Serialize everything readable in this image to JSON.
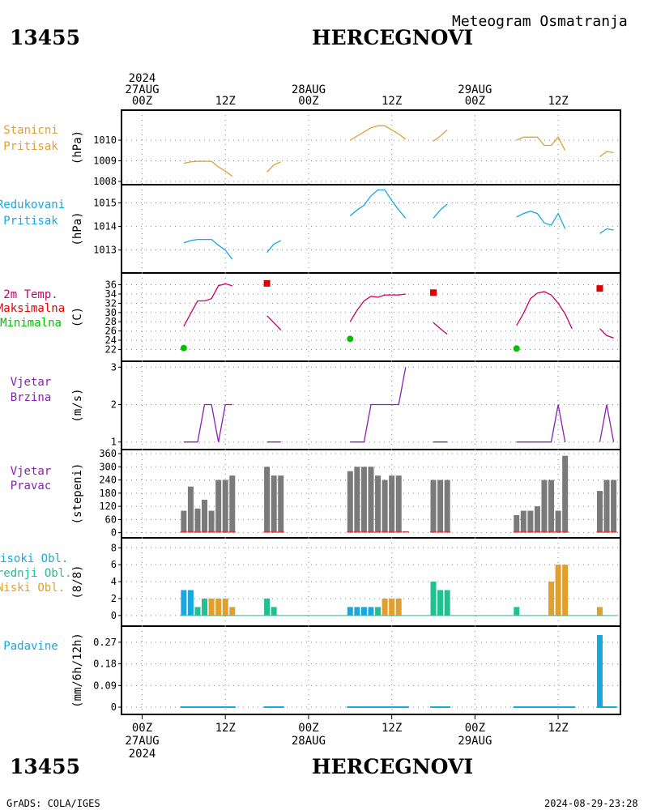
{
  "header": {
    "station_id": "13455",
    "station_name": "HERCEGNOVI",
    "subtitle": "Meteogram Osmatranja"
  },
  "footer": {
    "credit": "GrADS: COLA/IGES",
    "timestamp": "2024-08-29-23:28"
  },
  "time_axis": {
    "top_labels": [
      {
        "hour": 0,
        "lines": [
          "2024",
          "27AUG",
          "00Z"
        ]
      },
      {
        "hour": 12,
        "lines": [
          "12Z"
        ]
      },
      {
        "hour": 24,
        "lines": [
          "28AUG",
          "00Z"
        ]
      },
      {
        "hour": 36,
        "lines": [
          "12Z"
        ]
      },
      {
        "hour": 48,
        "lines": [
          "29AUG",
          "00Z"
        ]
      },
      {
        "hour": 60,
        "lines": [
          "12Z"
        ]
      }
    ],
    "bottom_labels": [
      {
        "hour": 0,
        "lines": [
          "00Z",
          "27AUG",
          "2024"
        ]
      },
      {
        "hour": 12,
        "lines": [
          "12Z"
        ]
      },
      {
        "hour": 24,
        "lines": [
          "00Z",
          "28AUG"
        ]
      },
      {
        "hour": 36,
        "lines": [
          "12Z"
        ]
      },
      {
        "hour": 48,
        "lines": [
          "00Z",
          "29AUG"
        ]
      },
      {
        "hour": 60,
        "lines": [
          "12Z"
        ]
      }
    ]
  },
  "chart_data": [
    {
      "type": "line",
      "labels": [
        {
          "text": "Stanicni",
          "color": "#e0a030"
        },
        {
          "text": "Pritisak",
          "color": "#e0a030"
        }
      ],
      "ylabel": "(hPa)",
      "ylim": [
        1008,
        1011.3
      ],
      "yticks": [
        1008,
        1009,
        1010
      ],
      "grid": true,
      "series": [
        {
          "color": "#e0a030",
          "segments": [
            [
              [
                6,
                1008.88
              ],
              [
                7,
                1008.95
              ],
              [
                8,
                1008.98
              ],
              [
                9,
                1008.98
              ],
              [
                10,
                1008.98
              ],
              [
                11,
                1008.7
              ],
              [
                12,
                1008.5
              ],
              [
                13,
                1008.25
              ]
            ],
            [
              [
                18,
                1008.45
              ],
              [
                19,
                1008.8
              ],
              [
                20,
                1008.95
              ]
            ],
            [
              [
                30,
                1010
              ],
              [
                31,
                1010.2
              ],
              [
                32,
                1010.4
              ],
              [
                33,
                1010.6
              ],
              [
                34,
                1010.7
              ],
              [
                35,
                1010.7
              ],
              [
                36,
                1010.5
              ],
              [
                37,
                1010.3
              ],
              [
                38,
                1010.05
              ]
            ],
            [
              [
                42,
                1009.95
              ],
              [
                43,
                1010.2
              ],
              [
                44,
                1010.5
              ]
            ],
            [
              [
                54,
                1010
              ],
              [
                55,
                1010.15
              ],
              [
                56,
                1010.15
              ],
              [
                57,
                1010.15
              ],
              [
                58,
                1009.75
              ],
              [
                59,
                1009.75
              ],
              [
                60,
                1010.15
              ],
              [
                61,
                1009.5
              ]
            ],
            [
              [
                66,
                1009.2
              ],
              [
                67,
                1009.45
              ],
              [
                68,
                1009.4
              ]
            ]
          ]
        }
      ]
    },
    {
      "type": "line",
      "labels": [
        {
          "text": "Redukovani",
          "color": "#1aa7e0"
        },
        {
          "text": "Pritisak",
          "color": "#1aa7e0"
        }
      ],
      "ylabel": "(hPa)",
      "ylim": [
        1012.3,
        1015.5
      ],
      "yticks": [
        1013,
        1014,
        1015
      ],
      "grid": true,
      "series": [
        {
          "color": "#1aa7e0",
          "segments": [
            [
              [
                6,
                1013.3
              ],
              [
                7,
                1013.4
              ],
              [
                8,
                1013.45
              ],
              [
                9,
                1013.45
              ],
              [
                10,
                1013.45
              ],
              [
                11,
                1013.2
              ],
              [
                12,
                1013
              ],
              [
                13,
                1012.6
              ]
            ],
            [
              [
                18,
                1012.9
              ],
              [
                19,
                1013.25
              ],
              [
                20,
                1013.4
              ]
            ],
            [
              [
                30,
                1014.45
              ],
              [
                31,
                1014.7
              ],
              [
                32,
                1014.9
              ],
              [
                33,
                1015.3
              ],
              [
                34,
                1015.55
              ],
              [
                35,
                1015.55
              ],
              [
                36,
                1015.1
              ],
              [
                37,
                1014.7
              ],
              [
                38,
                1014.35
              ]
            ],
            [
              [
                42,
                1014.35
              ],
              [
                43,
                1014.7
              ],
              [
                44,
                1014.95
              ]
            ],
            [
              [
                54,
                1014.4
              ],
              [
                55,
                1014.55
              ],
              [
                56,
                1014.65
              ],
              [
                57,
                1014.55
              ],
              [
                58,
                1014.15
              ],
              [
                59,
                1014.05
              ],
              [
                60,
                1014.55
              ],
              [
                61,
                1013.9
              ]
            ],
            [
              [
                66,
                1013.7
              ],
              [
                67,
                1013.9
              ],
              [
                68,
                1013.85
              ]
            ]
          ]
        }
      ]
    },
    {
      "type": "line",
      "labels": [
        {
          "text": "2m Temp.",
          "color": "#c8006a"
        },
        {
          "text": "Maksimalna",
          "color": "#e00000"
        },
        {
          "text": "Minimalna",
          "color": "#00c000"
        }
      ],
      "ylabel": "(C)",
      "ylim": [
        20.5,
        37.5
      ],
      "yticks": [
        22,
        24,
        26,
        28,
        30,
        32,
        34,
        36
      ],
      "grid": true,
      "series": [
        {
          "color": "#c8006a",
          "segments": [
            [
              [
                6,
                27
              ],
              [
                7,
                29.8
              ],
              [
                8,
                32.5
              ],
              [
                9,
                32.5
              ],
              [
                10,
                33
              ],
              [
                11,
                35.8
              ],
              [
                12,
                36.2
              ],
              [
                13,
                35.8
              ]
            ],
            [
              [
                18,
                29.3
              ],
              [
                19,
                27.8
              ],
              [
                20,
                26.2
              ]
            ],
            [
              [
                30,
                28
              ],
              [
                31,
                30.5
              ],
              [
                32,
                32.5
              ],
              [
                33,
                33.5
              ],
              [
                34,
                33.3
              ],
              [
                35,
                33.8
              ],
              [
                36,
                33.8
              ],
              [
                37,
                33.8
              ],
              [
                38,
                34
              ]
            ],
            [
              [
                42,
                27.8
              ],
              [
                43,
                26.5
              ],
              [
                44,
                25.3
              ]
            ],
            [
              [
                54,
                27.2
              ],
              [
                55,
                29.8
              ],
              [
                56,
                33
              ],
              [
                57,
                34.2
              ],
              [
                58,
                34.5
              ],
              [
                59,
                33.8
              ],
              [
                60,
                32
              ],
              [
                61,
                29.7
              ],
              [
                62,
                26.5
              ]
            ],
            [
              [
                66,
                26.5
              ],
              [
                67,
                25
              ],
              [
                68,
                24.5
              ]
            ]
          ]
        }
      ],
      "max_points": {
        "color": "#e00000",
        "points": [
          [
            18,
            36.3
          ],
          [
            42,
            34.3
          ],
          [
            66,
            35.2
          ]
        ]
      },
      "min_points": {
        "color": "#00c000",
        "points": [
          [
            6,
            22.3
          ],
          [
            30,
            24.3
          ],
          [
            54,
            22.2
          ]
        ]
      }
    },
    {
      "type": "line",
      "labels": [
        {
          "text": "Vjetar",
          "color": "#8a20b0"
        },
        {
          "text": "Brzina",
          "color": "#8a20b0"
        }
      ],
      "ylabel": "(m/s)",
      "ylim": [
        0.95,
        3.05
      ],
      "yticks": [
        1,
        2,
        3
      ],
      "grid": true,
      "series": [
        {
          "color": "#8a20b0",
          "segments": [
            [
              [
                6,
                1
              ],
              [
                7,
                1
              ],
              [
                8,
                1
              ],
              [
                9,
                2
              ],
              [
                10,
                2
              ],
              [
                11,
                1
              ],
              [
                12,
                2
              ],
              [
                13,
                2
              ]
            ],
            [
              [
                18,
                1
              ],
              [
                19,
                1
              ],
              [
                20,
                1
              ]
            ],
            [
              [
                30,
                1
              ],
              [
                31,
                1
              ],
              [
                32,
                1
              ],
              [
                33,
                2
              ],
              [
                34,
                2
              ],
              [
                35,
                2
              ],
              [
                36,
                2
              ],
              [
                37,
                2
              ],
              [
                38,
                3
              ]
            ],
            [
              [
                42,
                1
              ],
              [
                43,
                1
              ],
              [
                44,
                1
              ]
            ],
            [
              [
                54,
                1
              ],
              [
                55,
                1
              ],
              [
                56,
                1
              ],
              [
                57,
                1
              ],
              [
                58,
                1
              ],
              [
                59,
                1
              ],
              [
                60,
                2
              ],
              [
                61,
                1
              ]
            ],
            [
              [
                66,
                1
              ],
              [
                67,
                2
              ],
              [
                68,
                1
              ]
            ]
          ]
        }
      ]
    },
    {
      "type": "bar",
      "labels": [
        {
          "text": "Vjetar",
          "color": "#8a20b0"
        },
        {
          "text": "Pravac",
          "color": "#8a20b0"
        }
      ],
      "ylabel": "(stepeni)",
      "ylim": [
        -5,
        360
      ],
      "yticks": [
        0,
        60,
        120,
        180,
        240,
        300,
        360
      ],
      "grid": true,
      "bar_color": "#7a7a7a",
      "x": [
        6,
        7,
        8,
        9,
        10,
        11,
        12,
        13,
        18,
        19,
        20,
        30,
        31,
        32,
        33,
        34,
        35,
        36,
        37,
        38,
        42,
        43,
        44,
        54,
        55,
        56,
        57,
        58,
        59,
        60,
        61,
        66,
        67,
        68
      ],
      "values": [
        100,
        210,
        110,
        150,
        100,
        240,
        240,
        260,
        300,
        260,
        260,
        280,
        300,
        300,
        300,
        260,
        240,
        260,
        260,
        0,
        240,
        240,
        240,
        80,
        100,
        100,
        120,
        240,
        240,
        100,
        350,
        190,
        240,
        240
      ],
      "baseline_color": "#d04040"
    },
    {
      "type": "bar",
      "labels": [
        {
          "text": "Visoki Obl.",
          "color": "#1aa7e0"
        },
        {
          "text": "Srednji Obl.",
          "color": "#20c090"
        },
        {
          "text": "Niski Obl.",
          "color": "#e0a030"
        }
      ],
      "ylabel": "(8/8)",
      "ylim": [
        -0.3,
        8.6
      ],
      "yticks": [
        0,
        2,
        4,
        6,
        8
      ],
      "grid": true,
      "series": [
        {
          "name": "Visoki Obl.",
          "color": "#1aa7e0",
          "x": [
            6,
            7,
            30,
            31,
            32,
            33
          ],
          "values": [
            3,
            3,
            1,
            1,
            1,
            1
          ]
        },
        {
          "name": "Srednji Obl.",
          "color": "#20c090",
          "x": [
            8,
            9,
            18,
            19,
            34,
            42,
            43,
            44,
            54
          ],
          "values": [
            1,
            2,
            2,
            1,
            1,
            4,
            3,
            3,
            1
          ]
        },
        {
          "name": "Niski Obl.",
          "color": "#e0a030",
          "x": [
            10,
            11,
            12,
            13,
            35,
            36,
            37,
            59,
            60,
            61,
            66
          ],
          "values": [
            2,
            2,
            2,
            1,
            2,
            2,
            2,
            4,
            6,
            6,
            1
          ]
        }
      ]
    },
    {
      "type": "bar",
      "labels": [
        {
          "text": "Padavine",
          "color": "#1aa7e0"
        }
      ],
      "ylabel": "(mm/6h/12h)",
      "ylim": [
        -0.01,
        0.31
      ],
      "yticks": [
        0,
        0.09,
        0.18,
        0.27
      ],
      "ytick_labels": [
        "0",
        "0.09",
        "0.18",
        "0.27"
      ],
      "grid": true,
      "bar_color": "#1aa7e0",
      "x": [
        66
      ],
      "values": [
        0.3
      ],
      "trace_segments": [
        [
          6,
          13
        ],
        [
          18,
          20
        ],
        [
          30,
          38
        ],
        [
          42,
          44
        ],
        [
          54,
          62
        ],
        [
          66,
          68
        ]
      ]
    }
  ]
}
